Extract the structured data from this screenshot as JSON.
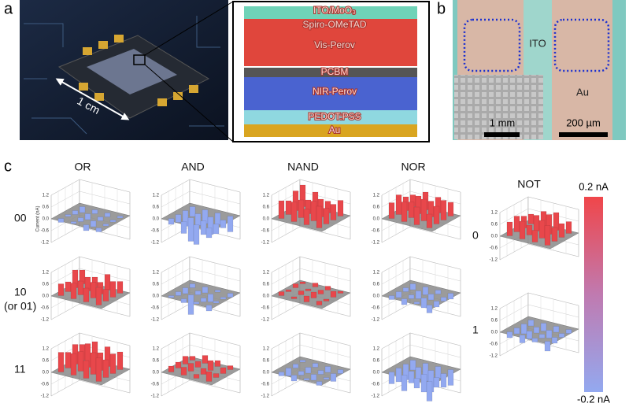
{
  "panel_a": {
    "label": "a",
    "scale": "1 cm",
    "layers": [
      "ITO/MoO₃",
      "Spiro-OMeTAD",
      "Vis-Perov",
      "PCBM",
      "NIR-Perov",
      "PEDOT:PSS",
      "Au"
    ]
  },
  "panel_b": {
    "label": "b",
    "top_label": "ITO",
    "bottom_label": "Au",
    "inset_scale": "1 mm",
    "scale": "200 µm"
  },
  "panel_c": {
    "label": "c",
    "columns": [
      "OR",
      "AND",
      "NAND",
      "NOR"
    ],
    "rows": [
      "00",
      "10",
      "(or 01)",
      "11"
    ],
    "not_title": "NOT",
    "not_rows": [
      "0",
      "1"
    ],
    "zlabel": "Current (nA)",
    "zlim": [
      -1.2,
      1.2
    ],
    "zticks": [
      1.2,
      0.6,
      {
        "value": 0,
        "label": "0.0"
      },
      -0.6,
      -1.2
    ],
    "positive_color": "#e8474b",
    "negative_color": "#93a9f0",
    "charts": [
      [
        [
          -0.2,
          -0.1,
          -0.3,
          -0.2,
          -0.1,
          -0.2,
          -0.3,
          -0.1,
          -0.2,
          -0.3,
          -0.2,
          -0.1,
          -0.3,
          -0.2,
          -0.2,
          -0.1
        ],
        [
          -0.3,
          -0.6,
          -1.0,
          -0.5,
          -0.4,
          -1.2,
          -0.7,
          -0.5,
          -0.8,
          -0.6,
          -0.9,
          -0.4,
          -0.5,
          -0.7,
          -0.6,
          -0.8
        ],
        [
          0.9,
          1.0,
          0.8,
          1.1,
          0.7,
          0.9,
          1.0,
          0.8,
          1.0,
          0.7,
          0.9,
          0.8,
          1.1,
          0.9,
          0.6,
          0.8
        ],
        [
          0.8,
          1.0,
          0.9,
          0.7,
          1.0,
          0.8,
          1.1,
          0.9,
          0.7,
          0.9,
          0.8,
          1.0,
          0.6,
          0.9,
          0.8,
          0.7
        ]
      ],
      [
        [
          0.6,
          0.8,
          0.7,
          0.9,
          0.5,
          0.7,
          0.8,
          0.6,
          0.9,
          0.7,
          0.6,
          0.8,
          0.7,
          0.5,
          0.8,
          0.6
        ],
        [
          -0.1,
          -0.2,
          -0.1,
          -0.3,
          -0.2,
          -1.0,
          -0.2,
          -0.1,
          -0.3,
          -0.2,
          -0.4,
          -0.1,
          -0.2,
          -0.3,
          -0.1,
          -0.2
        ],
        [
          0.2,
          0.1,
          0.3,
          0.2,
          0.1,
          0.2,
          0.3,
          0.1,
          0.2,
          0.1,
          0.2,
          0.3,
          0.1,
          0.2,
          0.2,
          0.1
        ],
        [
          -0.2,
          -0.3,
          -0.1,
          -0.4,
          -0.3,
          -0.2,
          -0.5,
          -0.3,
          -0.2,
          -0.4,
          -0.3,
          -0.2,
          -0.3,
          -0.4,
          -0.2,
          -0.3
        ]
      ],
      [
        [
          1.0,
          1.1,
          0.9,
          1.2,
          0.8,
          1.0,
          1.1,
          0.9,
          1.0,
          1.2,
          0.9,
          1.0,
          0.8,
          1.1,
          1.0,
          0.9
        ],
        [
          0.3,
          0.4,
          0.2,
          0.5,
          0.3,
          0.4,
          0.3,
          0.2,
          0.4,
          0.3,
          0.5,
          0.3,
          0.2,
          0.4,
          0.3,
          0.2
        ],
        [
          -0.2,
          -0.3,
          -0.1,
          -0.2,
          -0.4,
          -0.2,
          -0.3,
          -0.1,
          -0.2,
          -0.3,
          -0.2,
          -0.4,
          -0.1,
          -0.2,
          -0.3,
          -0.2
        ],
        [
          -0.6,
          -0.8,
          -0.5,
          -1.0,
          -0.7,
          -0.6,
          -0.9,
          -0.5,
          -0.8,
          -0.6,
          -1.1,
          -0.7,
          -0.5,
          -0.9,
          -0.6,
          -0.8
        ]
      ]
    ],
    "not_charts": [
      [
        0.7,
        0.9,
        0.6,
        1.0,
        0.8,
        0.5,
        0.9,
        0.7,
        0.6,
        0.8,
        1.0,
        0.7,
        0.5,
        0.8,
        0.9,
        0.6
      ],
      [
        -0.3,
        -0.4,
        -0.2,
        -0.5,
        -0.3,
        -0.4,
        -0.2,
        -0.3,
        -0.5,
        -0.3,
        -0.4,
        -0.2,
        -0.3,
        -0.4,
        -0.3,
        -0.2
      ]
    ],
    "colorbar": {
      "max_label": "0.2 nA",
      "min_label": "-0.2 nA"
    }
  }
}
